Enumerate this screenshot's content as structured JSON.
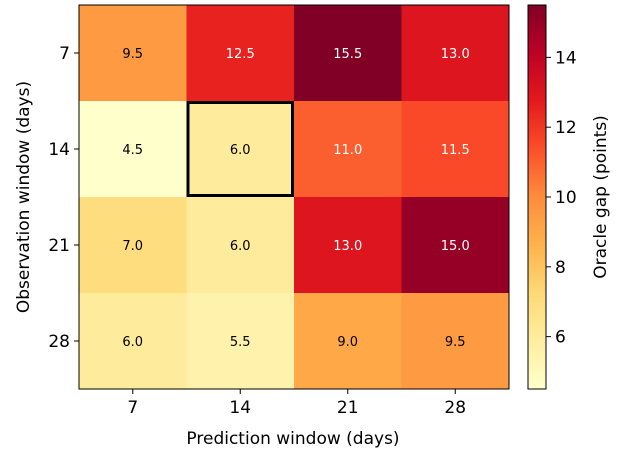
{
  "chart_data": {
    "type": "heatmap",
    "title": "",
    "xlabel": "Prediction window (days)",
    "ylabel": "Observation window (days)",
    "x_categories": [
      "7",
      "14",
      "21",
      "28"
    ],
    "y_categories": [
      "7",
      "14",
      "21",
      "28"
    ],
    "values": [
      [
        9.5,
        12.5,
        15.5,
        13.0
      ],
      [
        4.5,
        6.0,
        11.0,
        11.5
      ],
      [
        7.0,
        6.0,
        13.0,
        15.0
      ],
      [
        6.0,
        5.5,
        9.0,
        9.5
      ]
    ],
    "cell_labels": [
      [
        "9.5",
        "12.5",
        "15.5",
        "13.0"
      ],
      [
        "4.5",
        "6.0",
        "11.0",
        "11.5"
      ],
      [
        "7.0",
        "6.0",
        "13.0",
        "15.0"
      ],
      [
        "6.0",
        "5.5",
        "9.0",
        "9.5"
      ]
    ],
    "highlighted_cell": {
      "row": "14",
      "col": "14"
    },
    "colormap": "YlOrRd",
    "colorbar": {
      "label": "Oracle gap (points)",
      "range": [
        4.5,
        15.5
      ],
      "ticks": [
        6,
        8,
        10,
        12,
        14
      ],
      "tick_labels": [
        "6",
        "8",
        "10",
        "12",
        "14"
      ]
    },
    "colors": {
      "low": "#ffffcc",
      "high": "#800026",
      "highlight_border": "#000000"
    }
  }
}
